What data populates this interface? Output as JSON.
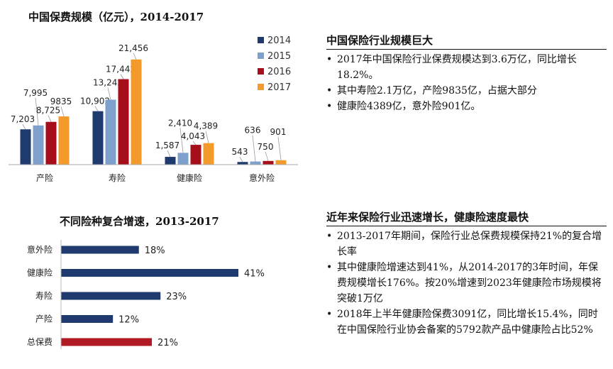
{
  "chart_data": [
    {
      "type": "bar",
      "title": "中国保费规模（亿元），2014-2017",
      "categories": [
        "产险",
        "寿险",
        "健康险",
        "意外险"
      ],
      "series": [
        {
          "name": "2014",
          "values": [
            7203,
            10902,
            1587,
            543
          ],
          "labels": [
            "7,203",
            "10,902",
            "1,587",
            "543"
          ],
          "color": "#1f3a6e"
        },
        {
          "name": "2015",
          "values": [
            7995,
            13242,
            2410,
            636
          ],
          "labels": [
            "7,995",
            "13,242",
            "2,410",
            "636"
          ],
          "color": "#7ea0cc"
        },
        {
          "name": "2016",
          "values": [
            8725,
            17442,
            4043,
            750
          ],
          "labels": [
            "8,725",
            "17,442",
            "4,043",
            "750"
          ],
          "color": "#a50e1a"
        },
        {
          "name": "2017",
          "values": [
            9835,
            21456,
            4389,
            901
          ],
          "labels": [
            "9835",
            "21,456",
            "4,389",
            "901"
          ],
          "color": "#f39a2b"
        }
      ],
      "ylim": [
        0,
        22000
      ],
      "grid": false,
      "legend": "top-right"
    },
    {
      "type": "bar",
      "orientation": "horizontal",
      "title": "不同险种复合增速，2013-2017",
      "categories": [
        "意外险",
        "健康险",
        "寿险",
        "产险",
        "总保费"
      ],
      "values": [
        18,
        41,
        23,
        12,
        21
      ],
      "labels": [
        "18%",
        "41%",
        "23%",
        "12%",
        "21%"
      ],
      "colors": [
        "#1f3a6e",
        "#1f3a6e",
        "#1f3a6e",
        "#1f3a6e",
        "#b11923"
      ],
      "xlim": [
        0,
        45
      ],
      "grid": false
    }
  ],
  "panels": {
    "top": {
      "title": "中国保险行业规模巨大",
      "bullets": [
        "2017年中国保险行业保费规模达到3.6万亿，同比增长18.2%。",
        "其中寿险2.1万亿，产险9835亿，占据大部分",
        "健康险4389亿，意外险901亿。"
      ]
    },
    "bottom": {
      "title": "近年来保险行业迅速增长，健康险速度最快",
      "bullets": [
        "2013-2017年期间，保险行业总保费规模保持21%的复合增长率",
        "其中健康险增速达到41%，从2014-2017的3年时间，年保费规模增长176%。按20%增速到2023年健康险市场规模将突破1万亿",
        "2018年上半年健康险保费3091亿，同比增长15.4%，同时在中国保险行业协会备案的5792款产品中健康险占比52%"
      ]
    }
  }
}
